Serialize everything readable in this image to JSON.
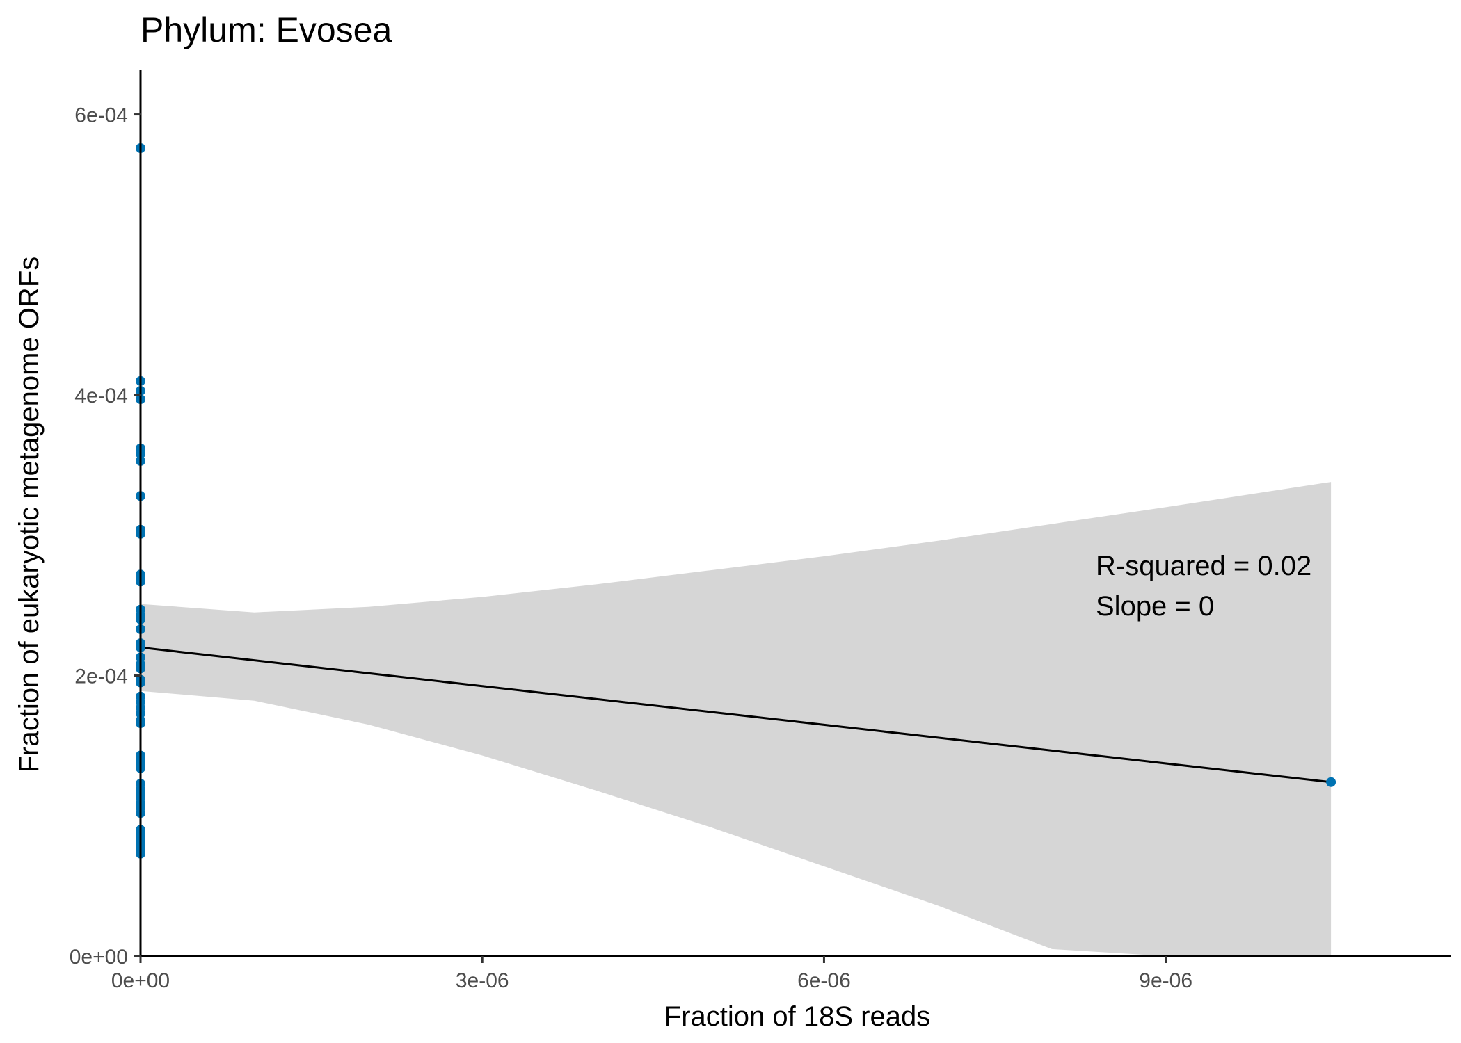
{
  "chart_data": {
    "type": "scatter",
    "title": "Phylum:  Evosea",
    "xlabel": "Fraction of 18S reads",
    "ylabel": "Fraction of eukaryotic metagenome ORFs",
    "xlim": [
      0,
      1.15e-05
    ],
    "ylim": [
      0,
      0.000632
    ],
    "x_ticks": [
      {
        "value": 0,
        "label": "0e+00"
      },
      {
        "value": 3e-06,
        "label": "3e-06"
      },
      {
        "value": 6e-06,
        "label": "6e-06"
      },
      {
        "value": 9e-06,
        "label": "9e-06"
      }
    ],
    "y_ticks": [
      {
        "value": 0,
        "label": "0e+00"
      },
      {
        "value": 0.0002,
        "label": "2e-04"
      },
      {
        "value": 0.0004,
        "label": "4e-04"
      },
      {
        "value": 0.0006,
        "label": "6e-04"
      }
    ],
    "grid": false,
    "points": {
      "color": "#0072b2",
      "x": [
        0,
        0,
        0,
        0,
        0,
        0,
        0,
        0,
        0,
        0,
        0,
        0,
        0,
        0,
        0,
        0,
        0,
        0,
        0,
        0,
        0,
        0,
        0,
        0,
        0,
        0,
        0,
        0,
        0,
        0,
        0,
        0,
        0,
        0,
        0,
        0,
        0,
        0,
        0,
        0,
        0,
        0,
        0,
        0,
        0,
        0,
        0,
        0,
        1.045e-05
      ],
      "y": [
        0.000576,
        0.00041,
        0.000403,
        0.000397,
        0.000362,
        0.000358,
        0.000353,
        0.000328,
        0.000304,
        0.000301,
        0.000272,
        0.00027,
        0.000267,
        0.000247,
        0.000243,
        0.00024,
        0.000233,
        0.000223,
        0.00022,
        0.000213,
        0.000208,
        0.000205,
        0.000197,
        0.000195,
        0.000185,
        0.000181,
        0.000177,
        0.000173,
        0.000168,
        0.000166,
        0.000143,
        0.00014,
        0.000137,
        0.000134,
        0.000123,
        0.000119,
        0.000116,
        0.000113,
        0.000109,
        0.000106,
        0.000102,
        9e-05,
        8.7e-05,
        8.4e-05,
        8.1e-05,
        7.8e-05,
        7.5e-05,
        7.3e-05,
        0.000124
      ]
    },
    "fit_line": {
      "color": "#000000",
      "x": [
        0,
        1.045e-05
      ],
      "y": [
        0.00022,
        0.000124
      ]
    },
    "confidence_band": {
      "color": "#d6d6d6",
      "x": [
        0,
        1e-06,
        2e-06,
        3e-06,
        4e-06,
        5e-06,
        6e-06,
        7e-06,
        8e-06,
        9e-06,
        1.045e-05
      ],
      "upper": [
        0.000251,
        0.000245,
        0.000249,
        0.000256,
        0.000265,
        0.000275,
        0.000285,
        0.000296,
        0.000308,
        0.00032,
        0.000338
      ],
      "lower": [
        0.000189,
        0.000182,
        0.000165,
        0.000143,
        0.000118,
        9.2e-05,
        6.4e-05,
        3.6e-05,
        5e-06,
        0,
        0
      ]
    },
    "annotations": [
      {
        "text": "R-squared =  0.02"
      },
      {
        "text": "Slope =  0"
      }
    ]
  }
}
